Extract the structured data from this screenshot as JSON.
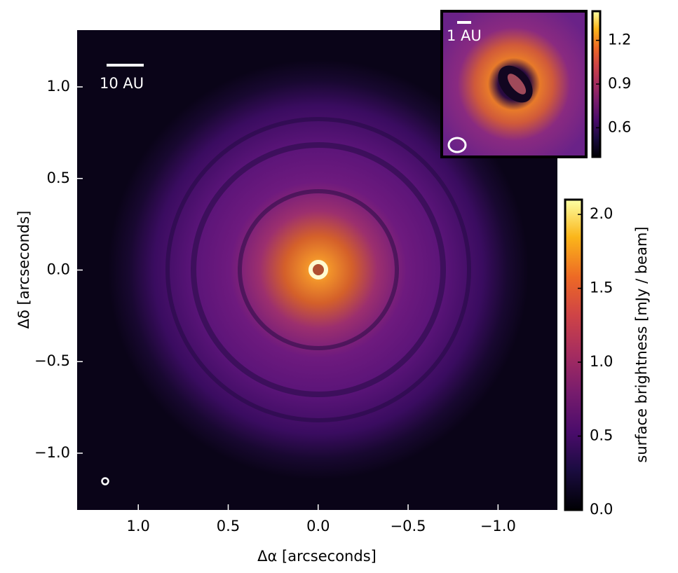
{
  "chart_data": [
    {
      "type": "image",
      "colormap": "inferno",
      "xlabel": "Δα  [arcseconds]",
      "ylabel": "Δδ  [arcseconds]",
      "xlim": [
        1.34,
        -1.33
      ],
      "ylim": [
        -1.31,
        1.31
      ],
      "xticks": [
        {
          "value": 1,
          "label": "1.0"
        },
        0.5,
        {
          "value": 0,
          "label": "0.0"
        },
        {
          "value": -0.5,
          "label": "−0.5"
        },
        {
          "value": -1,
          "label": "−1.0"
        }
      ],
      "yticks": [
        {
          "value": 1,
          "label": "1.0"
        },
        0.5,
        {
          "value": 0,
          "label": "0.0"
        },
        {
          "value": -0.5,
          "label": "−0.5"
        },
        {
          "value": -1,
          "label": "−1.0"
        }
      ],
      "scale_label": "10 AU"
    },
    {
      "type": "colorbar",
      "colormap": "inferno",
      "label": "surface brightness [mJy / beam]",
      "ylim": [
        0,
        2.1
      ],
      "yticks": [
        {
          "value": 0,
          "label": "0.0"
        },
        0.5,
        {
          "value": 1,
          "label": "1.0"
        },
        1.5,
        {
          "value": 2,
          "label": "2.0"
        }
      ]
    },
    {
      "type": "inset",
      "colormap": "inferno",
      "scale_label": "1 AU"
    },
    {
      "type": "colorbar",
      "colormap": "inferno",
      "ylim": [
        0.4,
        1.4
      ],
      "yticks": [
        0.6,
        0.9,
        1.2
      ]
    }
  ]
}
